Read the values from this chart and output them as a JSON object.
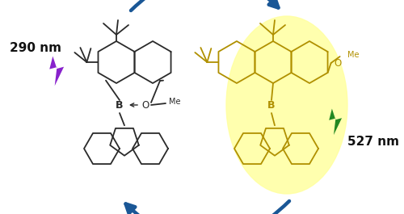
{
  "background_color": "#ffffff",
  "arrow_color": "#1a5796",
  "arrow_linewidth": 3.2,
  "left_molecule_color": "#2a2a2a",
  "right_molecule_color": "#b09000",
  "right_glow_color": "#ffffa0",
  "text_290": "290 nm",
  "text_527": "527 nm",
  "text_color": "#111111",
  "lightning_left_color": "#8822cc",
  "lightning_right_color": "#228822",
  "label_B": "B",
  "label_O": "O",
  "label_Me": "Me"
}
